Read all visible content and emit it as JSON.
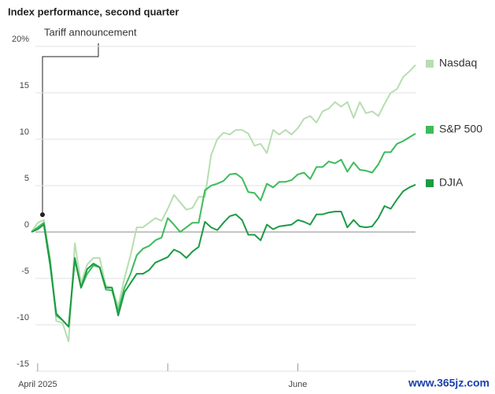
{
  "chart_data": {
    "type": "line",
    "title": "Index performance, second quarter",
    "annotation": "Tariff announcement",
    "watermark": "www.365jz.com",
    "categories": [
      null,
      "April 2025",
      null,
      null,
      null,
      null,
      null,
      null,
      null,
      null,
      null,
      null,
      null,
      null,
      null,
      null,
      null,
      null,
      null,
      null,
      null,
      null,
      null,
      null,
      null,
      null,
      null,
      null,
      null,
      null,
      null,
      null,
      null,
      null,
      null,
      null,
      null,
      null,
      null,
      null,
      null,
      null,
      null,
      "June",
      null,
      null,
      null,
      null,
      null,
      null,
      null,
      null,
      null,
      null,
      null,
      null,
      null,
      null,
      null,
      null,
      null,
      null,
      null
    ],
    "xticks": [
      1,
      22,
      43
    ],
    "ylim": [
      -15,
      20
    ],
    "yticks": [
      {
        "value": 20,
        "label": "20%"
      },
      15,
      10,
      5,
      0,
      -5,
      -10,
      -15
    ],
    "grid": true,
    "series": [
      {
        "name": "Nasdaq",
        "color": "#b7deb1",
        "values": [
          0,
          1,
          1.3,
          -3,
          -9.6,
          -9.8,
          -11.8,
          -1.2,
          -5.5,
          -3.5,
          -2.8,
          -2.8,
          -5.8,
          -6,
          -8,
          -5,
          -2.5,
          0.5,
          0.5,
          1,
          1.5,
          1.2,
          2.5,
          4,
          3.2,
          2.4,
          2.6,
          3.8,
          3.8,
          8.3,
          10,
          10.7,
          10.5,
          11,
          11,
          10.6,
          9.3,
          9.5,
          8.5,
          11,
          10.5,
          11,
          10.5,
          11.2,
          12.2,
          12.5,
          11.8,
          13,
          13.3,
          14,
          13.5,
          14,
          12.3,
          14,
          12.8,
          13,
          12.5,
          13.8,
          15,
          15.4,
          16.7,
          17.3,
          18
        ]
      },
      {
        "name": "S&P 500",
        "color": "#3dbb5c",
        "values": [
          0,
          0.5,
          1,
          -3,
          -9,
          -9.5,
          -10.2,
          -3,
          -6,
          -4.5,
          -3.6,
          -3.8,
          -6.2,
          -6.3,
          -8.5,
          -6,
          -4.5,
          -2.5,
          -1.8,
          -1.5,
          -0.9,
          -0.6,
          1.5,
          0.8,
          0,
          0.5,
          1,
          1,
          4.5,
          5,
          5.2,
          5.5,
          6.2,
          6.3,
          5.8,
          4.3,
          4.2,
          3.4,
          5.2,
          4.8,
          5.4,
          5.4,
          5.6,
          6.2,
          6.4,
          5.7,
          7,
          7,
          7.6,
          7.4,
          7.8,
          6.5,
          7.5,
          6.7,
          6.6,
          6.4,
          7.3,
          8.6,
          8.6,
          9.5,
          9.8,
          10.2,
          10.6
        ]
      },
      {
        "name": "DJIA",
        "color": "#1d9a44",
        "values": [
          0,
          0.3,
          0.8,
          -3.5,
          -8.8,
          -9.5,
          -10.2,
          -2.8,
          -6,
          -4,
          -3.4,
          -3.8,
          -6,
          -6,
          -9,
          -6.5,
          -5.5,
          -4.5,
          -4.5,
          -4.1,
          -3.3,
          -3,
          -2.7,
          -1.9,
          -2.2,
          -2.8,
          -2.1,
          -1.6,
          1.1,
          0.5,
          0.2,
          1,
          1.7,
          1.9,
          1.3,
          -0.3,
          -0.3,
          -0.9,
          0.8,
          0.3,
          0.6,
          0.7,
          0.8,
          1.3,
          1.1,
          0.8,
          1.9,
          1.9,
          2.1,
          2.2,
          2.2,
          0.5,
          1.3,
          0.6,
          0.5,
          0.6,
          1.5,
          2.8,
          2.5,
          3.5,
          4.4,
          4.8,
          5.1
        ]
      }
    ]
  }
}
